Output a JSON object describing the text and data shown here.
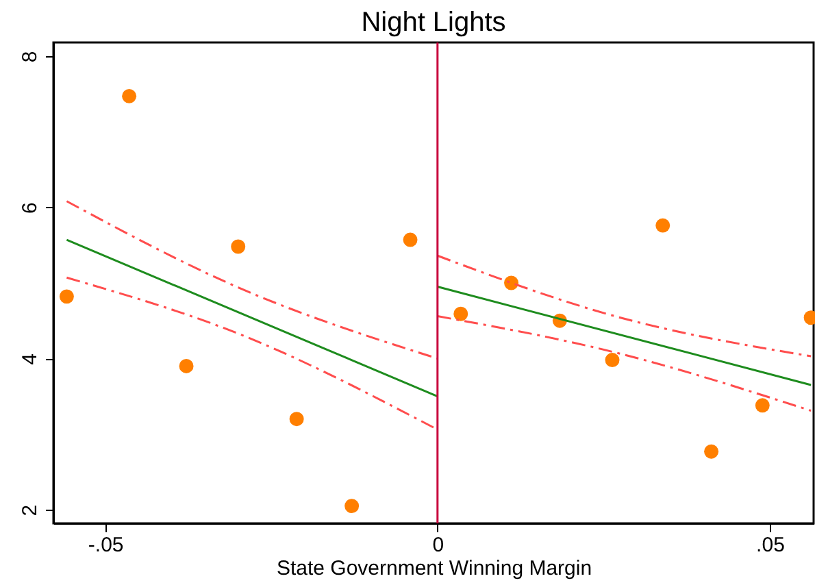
{
  "chart_data": {
    "type": "scatter",
    "title": "Night Lights",
    "xlabel": "State Government Winning Margin",
    "xlim": [
      -0.0578,
      0.0566
    ],
    "xticks": [
      {
        "value": -0.05,
        "label": "-.05"
      },
      0,
      {
        "value": 0.05,
        "label": ".05"
      }
    ],
    "ylim": [
      1.82,
      8.18
    ],
    "yticks": [
      2,
      4,
      6,
      8
    ],
    "grid": false,
    "series": [
      {
        "marker": "circle",
        "color": "#ff7f00",
        "x": [
          -0.0558,
          -0.0464,
          -0.0378,
          -0.03,
          -0.0212,
          -0.0129,
          -0.0041,
          0.0035,
          0.0111,
          0.0184,
          0.0263,
          0.0339,
          0.0412,
          0.0489,
          0.0562
        ],
        "values": [
          4.82,
          7.47,
          3.9,
          5.48,
          3.2,
          2.05,
          5.57,
          4.59,
          5.0,
          4.5,
          3.98,
          5.76,
          2.77,
          3.38,
          4.54
        ]
      },
      {
        "type": "line",
        "color": "#1e8c1e",
        "line_style": "solid",
        "x": [
          -0.0558,
          0
        ],
        "values": [
          5.57,
          3.5
        ]
      },
      {
        "type": "line",
        "color": "#ff4d4d",
        "line_style": "dashed",
        "x": [
          -0.0558,
          -0.03,
          0
        ],
        "values": [
          6.08,
          4.94,
          4.0
        ]
      },
      {
        "type": "line",
        "color": "#ff4d4d",
        "line_style": "dashed",
        "x": [
          -0.0558,
          -0.03,
          0
        ],
        "values": [
          5.07,
          4.33,
          3.06
        ]
      },
      {
        "type": "line",
        "color": "#1e8c1e",
        "line_style": "solid",
        "x": [
          0,
          0.0562
        ],
        "values": [
          4.95,
          3.65
        ]
      },
      {
        "type": "line",
        "color": "#ff4d4d",
        "line_style": "dashed",
        "x": [
          0,
          0.0263,
          0.0562
        ],
        "values": [
          5.36,
          4.57,
          4.03
        ]
      },
      {
        "type": "line",
        "color": "#ff4d4d",
        "line_style": "dashed",
        "x": [
          0,
          0.0263,
          0.0562
        ],
        "values": [
          4.56,
          4.09,
          3.31
        ]
      }
    ],
    "ref_lines": [
      {
        "axis": "x",
        "value": 0,
        "color": "#c8003c"
      }
    ]
  }
}
